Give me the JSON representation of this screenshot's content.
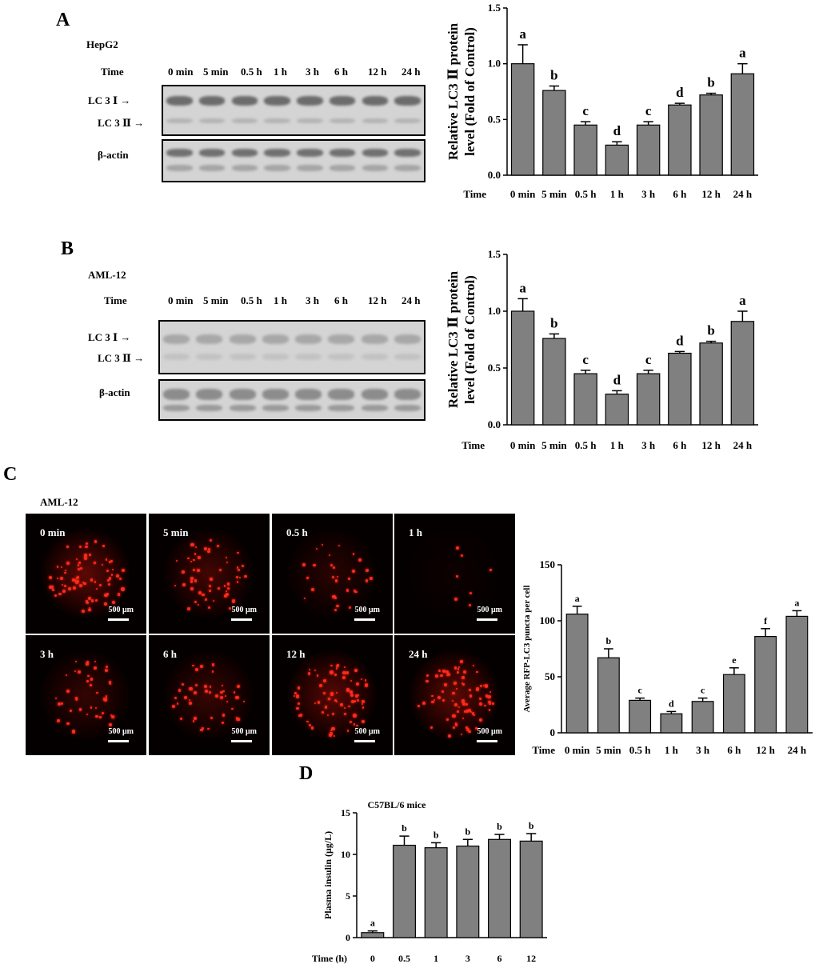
{
  "panel_letters": {
    "a": "A",
    "b": "B",
    "c": "C",
    "d": "D"
  },
  "blot_a": {
    "cell_line": "HepG2",
    "time_label": "Time",
    "lanes": [
      "0 min",
      "5 min",
      "0.5 h",
      "1 h",
      "3 h",
      "6 h",
      "12 h",
      "24 h"
    ],
    "lc3_1_label": "LC 3 Ⅰ",
    "lc3_2_label": "LC 3 Ⅱ",
    "actin_label": "β-actin",
    "arrow": "→"
  },
  "blot_b": {
    "cell_line": "AML-12",
    "time_label": "Time",
    "lanes": [
      "0 min",
      "5 min",
      "0.5 h",
      "1 h",
      "3 h",
      "6 h",
      "12 h",
      "24 h"
    ],
    "lc3_1_label": "LC 3 Ⅰ",
    "lc3_2_label": "LC 3 Ⅱ",
    "actin_label": "β-actin",
    "arrow": "→"
  },
  "micro_c": {
    "cell_line": "AML-12",
    "scale_label": "500 μm",
    "tiles": [
      "0 min",
      "5 min",
      "0.5 h",
      "1 h",
      "3 h",
      "6 h",
      "12 h",
      "24 h"
    ],
    "intensity": [
      0.85,
      0.6,
      0.35,
      0.08,
      0.45,
      0.5,
      0.8,
      0.85
    ],
    "signal_color": "#ff2a1a"
  },
  "chart_data": [
    {
      "type": "bar",
      "panel": "A",
      "categories": [
        "0 min",
        "5 min",
        "0.5 h",
        "1 h",
        "3 h",
        "6 h",
        "12 h",
        "24 h"
      ],
      "values": [
        1.0,
        0.76,
        0.45,
        0.27,
        0.45,
        0.63,
        0.72,
        0.91
      ],
      "errors": [
        0.17,
        0.04,
        0.03,
        0.03,
        0.03,
        0.015,
        0.015,
        0.09
      ],
      "letters": [
        "a",
        "b",
        "c",
        "d",
        "c",
        "d",
        "b",
        "a"
      ],
      "ylabel_line1": "Relative LC3 Ⅱ protein",
      "ylabel_line2": "level (Fold of Control)",
      "xlabel": "Time",
      "ylim": [
        0,
        1.5
      ],
      "yticks": [
        "0.0",
        "0.5",
        "1.0",
        "1.5"
      ],
      "bar_color": "#808080"
    },
    {
      "type": "bar",
      "panel": "B",
      "categories": [
        "0 min",
        "5 min",
        "0.5 h",
        "1 h",
        "3 h",
        "6 h",
        "12 h",
        "24 h"
      ],
      "values": [
        1.0,
        0.76,
        0.45,
        0.27,
        0.45,
        0.63,
        0.72,
        0.91
      ],
      "errors": [
        0.11,
        0.04,
        0.03,
        0.03,
        0.03,
        0.015,
        0.015,
        0.09
      ],
      "letters": [
        "a",
        "b",
        "c",
        "d",
        "c",
        "d",
        "b",
        "a"
      ],
      "ylabel_line1": "Relative LC3 Ⅱ protein",
      "ylabel_line2": "level (Fold of Control)",
      "xlabel": "Time",
      "ylim": [
        0,
        1.5
      ],
      "yticks": [
        "0.0",
        "0.5",
        "1.0",
        "1.5"
      ],
      "bar_color": "#808080"
    },
    {
      "type": "bar",
      "panel": "C",
      "categories": [
        "0 min",
        "5 min",
        "0.5 h",
        "1 h",
        "3 h",
        "6 h",
        "12 h",
        "24 h"
      ],
      "values": [
        106,
        67,
        29,
        17,
        28,
        52,
        86,
        104
      ],
      "errors": [
        7,
        8,
        2,
        2,
        3,
        6,
        7,
        5
      ],
      "letters": [
        "a",
        "b",
        "c",
        "d",
        "c",
        "e",
        "f",
        "a"
      ],
      "ylabel_line1": "Average RFP-LC3 puncta per cell",
      "ylabel_line2": "",
      "xlabel": "Time",
      "ylim": [
        0,
        150
      ],
      "yticks": [
        "0",
        "50",
        "100",
        "150"
      ],
      "bar_color": "#808080"
    },
    {
      "type": "bar",
      "panel": "D",
      "title": "C57BL/6 mice",
      "categories": [
        "0",
        "0.5",
        "1",
        "3",
        "6",
        "12"
      ],
      "values": [
        0.6,
        11.1,
        10.8,
        11.0,
        11.8,
        11.6
      ],
      "errors": [
        0.2,
        1.1,
        0.6,
        0.8,
        0.6,
        0.9
      ],
      "letters": [
        "a",
        "b",
        "b",
        "b",
        "b",
        "b"
      ],
      "ylabel_line1": "Plasma insulin (μg/L)",
      "ylabel_line2": "",
      "xlabel": "Time (h)",
      "ylim": [
        0,
        15
      ],
      "yticks": [
        "0",
        "5",
        "10",
        "15"
      ],
      "bar_color": "#808080"
    }
  ]
}
